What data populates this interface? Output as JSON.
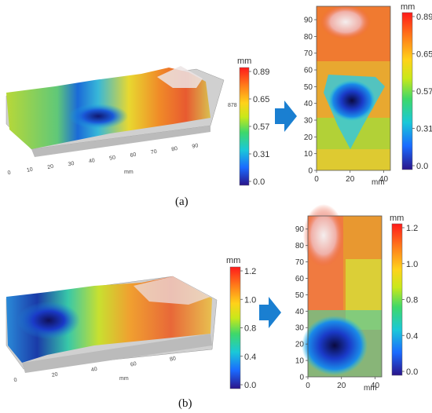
{
  "panel_a": {
    "label": "(a)",
    "surface3d": {
      "x_ticks": [
        "0",
        "10",
        "20",
        "30",
        "40",
        "50",
        "60",
        "70",
        "80",
        "90"
      ],
      "x_unit": "mm",
      "side_value": "878"
    },
    "colorbar3d": {
      "unit": "mm",
      "ticks": [
        "0.89",
        "0.65",
        "0.57",
        "0.31",
        "0.0"
      ]
    },
    "map2d": {
      "y_ticks": [
        "90",
        "80",
        "70",
        "60",
        "50",
        "40",
        "30",
        "20",
        "10",
        "0"
      ],
      "x_ticks": [
        "0",
        "20",
        "40"
      ],
      "x_unit": "mm"
    },
    "colorbar2d": {
      "unit": "mm",
      "ticks": [
        "0.89",
        "0.65",
        "0.57",
        "0.31",
        "0.0"
      ]
    }
  },
  "panel_b": {
    "label": "(b)",
    "surface3d": {
      "x_ticks": [
        "0",
        "20",
        "40",
        "60",
        "80"
      ],
      "x_unit": "mm"
    },
    "colorbar3d": {
      "unit": "mm",
      "ticks": [
        "1.2",
        "1.0",
        "0.8",
        "0.4",
        "0.0"
      ]
    },
    "map2d": {
      "y_ticks": [
        "90",
        "80",
        "70",
        "60",
        "50",
        "40",
        "30",
        "20",
        "10",
        "0"
      ],
      "x_ticks": [
        "0",
        "20",
        "40"
      ],
      "x_unit": "mm"
    },
    "colorbar2d": {
      "unit": "mm",
      "ticks": [
        "1.2",
        "1.0",
        "0.8",
        "0.4",
        "0.0"
      ]
    }
  },
  "colors": {
    "arrow": "#1a7fd1",
    "scale": [
      "#ff1a1a",
      "#ff8c1a",
      "#ffe11a",
      "#7ee01a",
      "#1ad0a0",
      "#1ab8ff",
      "#1a4aff",
      "#2a1a8a"
    ]
  }
}
